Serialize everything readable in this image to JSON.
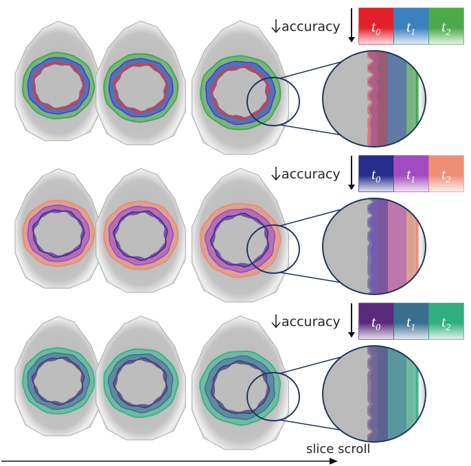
{
  "rows": [
    {
      "accuracy_label": "accuracy",
      "swatches": [
        {
          "label": "t",
          "sub": "0",
          "color": "#e3212b"
        },
        {
          "label": "t",
          "sub": "1",
          "color": "#3a7fc0"
        },
        {
          "label": "t",
          "sub": "2",
          "color": "#4aaa4a"
        }
      ],
      "contours": {
        "inner": "#e8333a",
        "mid": "#3b3bdc",
        "outer": "#40aa48"
      }
    },
    {
      "accuracy_label": "accuracy",
      "swatches": [
        {
          "label": "t",
          "sub": "0",
          "color": "#262d8c"
        },
        {
          "label": "t",
          "sub": "1",
          "color": "#a24bc0"
        },
        {
          "label": "t",
          "sub": "2",
          "color": "#ef8f78"
        }
      ],
      "contours": {
        "inner": "#2e2f96",
        "mid": "#9b46c8",
        "outer": "#f08a70"
      }
    },
    {
      "accuracy_label": "accuracy",
      "swatches": [
        {
          "label": "t",
          "sub": "0",
          "color": "#5b2a7c"
        },
        {
          "label": "t",
          "sub": "1",
          "color": "#3a6e8f"
        },
        {
          "label": "t",
          "sub": "2",
          "color": "#2fae7f"
        }
      ],
      "contours": {
        "inner": "#5d2b7f",
        "mid": "#3f6e98",
        "outer": "#34b58b"
      }
    }
  ],
  "axis": {
    "label": "slice scroll"
  }
}
